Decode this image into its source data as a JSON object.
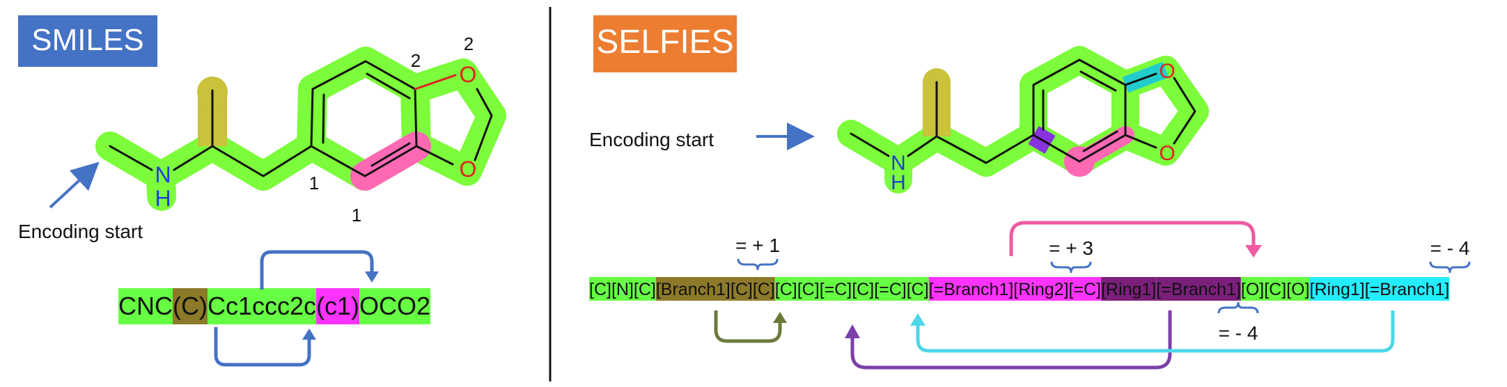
{
  "smiles_panel": {
    "title": "SMILES",
    "encoding_start": "Encoding start",
    "ring_labels": [
      "1",
      "1",
      "2",
      "2"
    ],
    "string_segments": [
      {
        "text": "CNC",
        "color": "#66ff44"
      },
      {
        "text": "(C)",
        "color": "#8c7a2a"
      },
      {
        "text": "Cc1ccc2c",
        "color": "#66ff44"
      },
      {
        "text": "(c1)",
        "color": "#ff33ff"
      },
      {
        "text": "OCO2",
        "color": "#66ff44"
      }
    ]
  },
  "selfies_panel": {
    "title": "SELFIES",
    "encoding_start": "Encoding start",
    "tokens": [
      {
        "text": "[C]",
        "color": "#66ff44"
      },
      {
        "text": "[N]",
        "color": "#66ff44"
      },
      {
        "text": "[C]",
        "color": "#66ff44"
      },
      {
        "text": "[Branch1]",
        "color": "#8c7a2a"
      },
      {
        "text": "[C]",
        "color": "#8c7a2a"
      },
      {
        "text": "[C]",
        "color": "#8c7a2a"
      },
      {
        "text": "[C]",
        "color": "#66ff44"
      },
      {
        "text": "[C]",
        "color": "#66ff44"
      },
      {
        "text": "[=C]",
        "color": "#66ff44"
      },
      {
        "text": "[C]",
        "color": "#66ff44"
      },
      {
        "text": "[=C]",
        "color": "#66ff44"
      },
      {
        "text": "[C]",
        "color": "#66ff44"
      },
      {
        "text": "[=Branch1]",
        "color": "#ff33ff"
      },
      {
        "text": "[Ring2]",
        "color": "#ff33ff"
      },
      {
        "text": "[=C]",
        "color": "#ff33ff"
      },
      {
        "text": "[Ring1]",
        "color": "#7a1f7a"
      },
      {
        "text": "[=Branch1]",
        "color": "#7a1f7a"
      },
      {
        "text": "[O]",
        "color": "#66ff44"
      },
      {
        "text": "[C]",
        "color": "#66ff44"
      },
      {
        "text": "[O]",
        "color": "#66ff44"
      },
      {
        "text": "[Ring1]",
        "color": "#22eeff"
      },
      {
        "text": "[=Branch1]",
        "color": "#22eeff"
      }
    ],
    "annotations": [
      "= + 1",
      "= + 3",
      "= - 4",
      "= - 4"
    ]
  },
  "atoms": {
    "N": "N",
    "H": "H",
    "O": "O"
  },
  "colors": {
    "smiles_title_bg": "#4472c4",
    "selfies_title_bg": "#ed7d31",
    "highlight_green": "#7cfc3a",
    "branch_olive": "#c9c23a",
    "ring_pink": "#ff69b4",
    "bond_purple": "#8833dd",
    "bond_cyan": "#22cccc",
    "arrow_blue": "#4472c4",
    "arrow_olive": "#6b7a3a",
    "arrow_purple": "#7b3fa8",
    "arrow_cyan": "#4cd6e8",
    "arrow_pink": "#ee5aa0",
    "nitrogen": "#1f3fd6",
    "oxygen": "#e02020"
  }
}
